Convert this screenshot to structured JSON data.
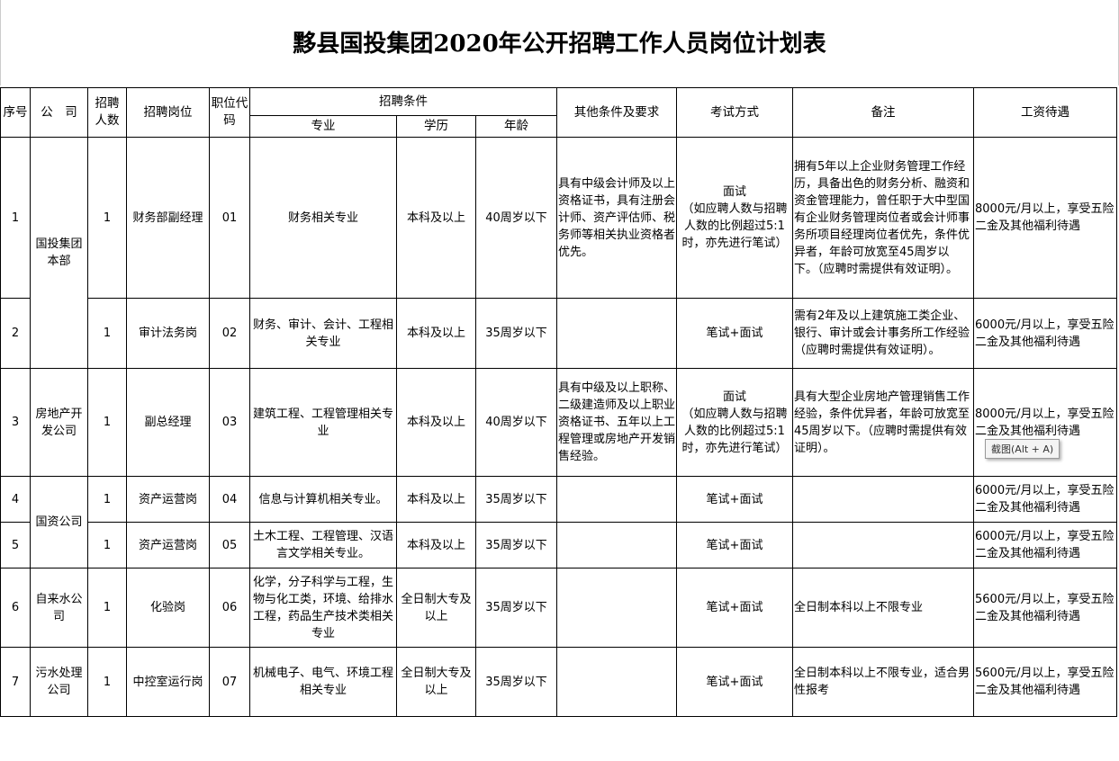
{
  "title": "黟县国投集团2020年公开招聘工作人员岗位计划表",
  "header": {
    "seq": "序号",
    "company": "公　司",
    "count": "招聘人数",
    "post": "招聘岗位",
    "code": "职位代码",
    "conditions": "招聘条件",
    "major": "专业",
    "edu": "学历",
    "age": "年龄",
    "other": "其他条件及要求",
    "exam": "考试方式",
    "remark": "备注",
    "salary": "工资待遇"
  },
  "rows": [
    {
      "seq": "1",
      "company": "国投集团本部",
      "company_span": 2,
      "count": "1",
      "post": "财务部副经理",
      "code": "01",
      "major": "财务相关专业",
      "edu": "本科及以上",
      "age": "40周岁以下",
      "other": "具有中级会计师及以上资格证书，具有注册会计师、资产评估师、税务师等相关执业资格者优先。",
      "exam": "面试\n（如应聘人数与招聘人数的比例超过5:1时，亦先进行笔试）",
      "remark": "拥有5年以上企业财务管理工作经历，具备出色的财务分析、融资和资金管理能力，曾任职于大中型国有企业财务管理岗位者或会计师事务所项目经理岗位者优先，条件优异者，年龄可放宽至45周岁以下。（应聘时需提供有效证明）。",
      "salary": "8000元/月以上，享受五险二金及其他福利待遇"
    },
    {
      "seq": "2",
      "count": "1",
      "post": "审计法务岗",
      "code": "02",
      "major": "财务、审计、会计、工程相关专业",
      "edu": "本科及以上",
      "age": "35周岁以下",
      "other": "",
      "exam": "笔试+面试",
      "remark": "需有2年及以上建筑施工类企业、银行、审计或会计事务所工作经验（应聘时需提供有效证明）。",
      "salary": "6000元/月以上，享受五险二金及其他福利待遇"
    },
    {
      "seq": "3",
      "company": "房地产开发公司",
      "company_span": 1,
      "count": "1",
      "post": "副总经理",
      "code": "03",
      "major": "建筑工程、工程管理相关专业",
      "edu": "本科及以上",
      "age": "40周岁以下",
      "other": "具有中级及以上职称、二级建造师及以上职业资格证书、五年以上工程管理或房地产开发销售经验。",
      "exam": "面试\n（如应聘人数与招聘人数的比例超过5:1时，亦先进行笔试）",
      "remark": "具有大型企业房地产管理销售工作经验，条件优异者，年龄可放宽至45周岁以下。（应聘时需提供有效证明）。",
      "salary": "8000元/月以上，享受五险二金及其他福利待遇"
    },
    {
      "seq": "4",
      "company": "国资公司",
      "company_span": 2,
      "count": "1",
      "post": "资产运营岗",
      "code": "04",
      "major": "信息与计算机相关专业。",
      "edu": "本科及以上",
      "age": "35周岁以下",
      "other": "",
      "exam": "笔试+面试",
      "remark": "",
      "salary": "6000元/月以上，享受五险二金及其他福利待遇"
    },
    {
      "seq": "5",
      "count": "1",
      "post": "资产运营岗",
      "code": "05",
      "major": "土木工程、工程管理、汉语言文学相关专业。",
      "edu": "本科及以上",
      "age": "35周岁以下",
      "other": "",
      "exam": "笔试+面试",
      "remark": "",
      "salary": "6000元/月以上，享受五险二金及其他福利待遇"
    },
    {
      "seq": "6",
      "company": "自来水公司",
      "company_span": 1,
      "count": "1",
      "post": "化验岗",
      "code": "06",
      "major": "化学，分子科学与工程，生物与化工类，环境、给排水工程，药品生产技术类相关专业",
      "edu": "全日制大专及以上",
      "age": "35周岁以下",
      "other": "",
      "exam": "笔试+面试",
      "remark": "全日制本科以上不限专业",
      "salary": "5600元/月以上，享受五险二金及其他福利待遇"
    },
    {
      "seq": "7",
      "company": "污水处理公司",
      "company_span": 1,
      "count": "1",
      "post": "中控室运行岗",
      "code": "07",
      "major": "机械电子、电气、环境工程相关专业",
      "edu": "全日制大专及以上",
      "age": "35周岁以下",
      "other": "",
      "exam": "笔试+面试",
      "remark": "全日制本科以上不限专业，适合男性报考",
      "salary": "5600元/月以上，享受五险二金及其他福利待遇"
    }
  ],
  "tooltip": "截图(Alt + A)"
}
